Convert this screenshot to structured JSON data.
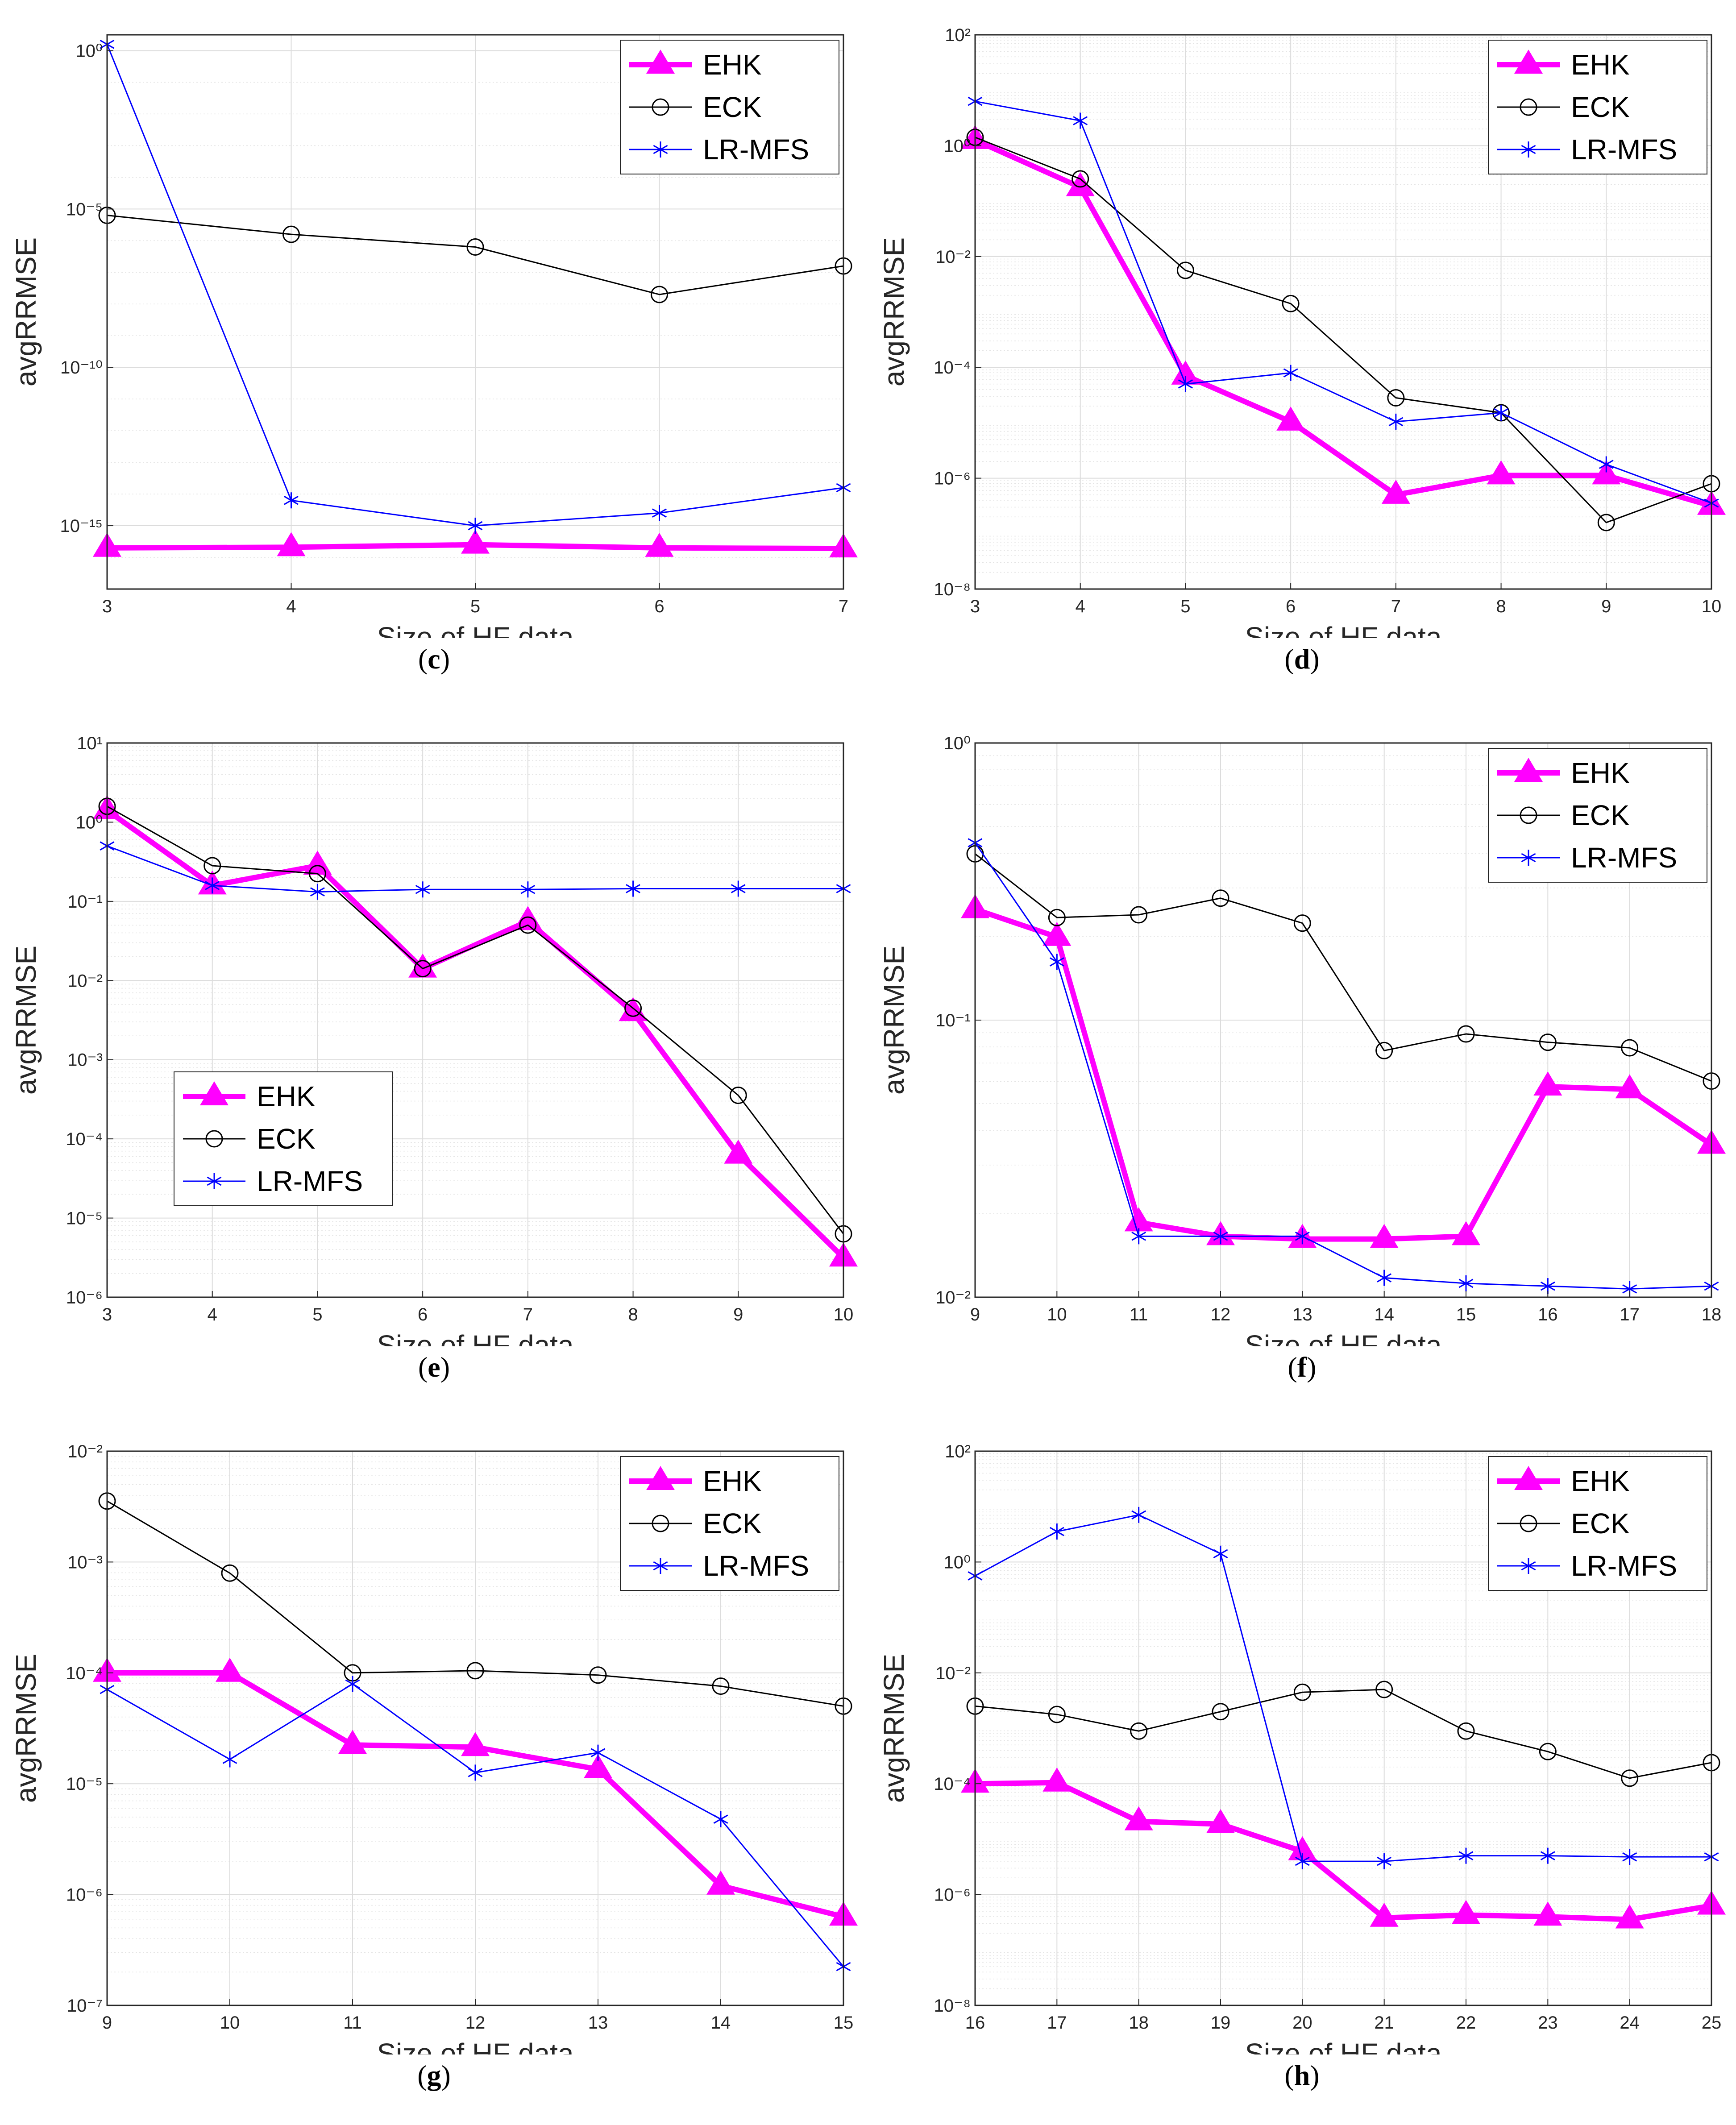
{
  "chart_data": [
    {
      "id": "c",
      "caption": "c",
      "type": "line",
      "yscale": "log",
      "xlabel": "Size of HF data",
      "ylabel": "avgRRMSE",
      "xlim": [
        3,
        7
      ],
      "xticks": [
        3,
        4,
        5,
        6,
        7
      ],
      "ylim_exp": [
        -17,
        0.5
      ],
      "yticks_exp": [
        0,
        -5,
        -10,
        -15
      ],
      "legend": "top-right",
      "series": [
        {
          "name": "EHK",
          "color": "#ff00ff",
          "marker": "triangle",
          "x": [
            3,
            4,
            5,
            6,
            7
          ],
          "log10_y": [
            -15.7,
            -15.68,
            -15.6,
            -15.7,
            -15.72
          ]
        },
        {
          "name": "ECK",
          "color": "#000000",
          "marker": "circle",
          "x": [
            3,
            4,
            5,
            6,
            7
          ],
          "log10_y": [
            -5.2,
            -5.8,
            -6.2,
            -7.7,
            -6.8
          ]
        },
        {
          "name": "LR-MFS",
          "color": "#0000ff",
          "marker": "star",
          "x": [
            3,
            4,
            5,
            6,
            7
          ],
          "log10_y": [
            0.2,
            -14.2,
            -15.0,
            -14.6,
            -13.8
          ]
        }
      ]
    },
    {
      "id": "d",
      "caption": "d",
      "type": "line",
      "yscale": "log",
      "xlabel": "Size of HF data",
      "ylabel": "avgRRMSE",
      "xlim": [
        3,
        10
      ],
      "xticks": [
        3,
        4,
        5,
        6,
        7,
        8,
        9,
        10
      ],
      "ylim_exp": [
        -8,
        2
      ],
      "yticks_exp": [
        2,
        0,
        -2,
        -4,
        -6,
        -8
      ],
      "legend": "top-right",
      "series": [
        {
          "name": "EHK",
          "color": "#ff00ff",
          "marker": "triangle",
          "x": [
            3,
            4,
            5,
            6,
            7,
            8,
            9,
            10
          ],
          "log10_y": [
            0.1,
            -0.75,
            -4.15,
            -4.98,
            -6.3,
            -5.95,
            -5.95,
            -6.5
          ]
        },
        {
          "name": "ECK",
          "color": "#000000",
          "marker": "circle",
          "x": [
            3,
            4,
            5,
            6,
            7,
            8,
            9,
            10
          ],
          "log10_y": [
            0.15,
            -0.6,
            -2.25,
            -2.85,
            -4.55,
            -4.82,
            -6.8,
            -6.1
          ]
        },
        {
          "name": "LR-MFS",
          "color": "#0000ff",
          "marker": "star",
          "x": [
            3,
            4,
            5,
            6,
            7,
            8,
            9,
            10
          ],
          "log10_y": [
            0.8,
            0.45,
            -4.3,
            -4.1,
            -4.98,
            -4.82,
            -5.75,
            -6.45
          ]
        }
      ]
    },
    {
      "id": "e",
      "caption": "e",
      "type": "line",
      "yscale": "log",
      "xlabel": "Size of HF data",
      "ylabel": "avgRRMSE",
      "xlim": [
        3,
        10
      ],
      "xticks": [
        3,
        4,
        5,
        6,
        7,
        8,
        9,
        10
      ],
      "ylim_exp": [
        -6,
        1
      ],
      "yticks_exp": [
        1,
        0,
        -1,
        -2,
        -3,
        -4,
        -5,
        -6
      ],
      "legend": "bottom-left",
      "series": [
        {
          "name": "EHK",
          "color": "#ff00ff",
          "marker": "triangle",
          "x": [
            3,
            4,
            5,
            6,
            7,
            8,
            9,
            10
          ],
          "log10_y": [
            0.15,
            -0.8,
            -0.55,
            -1.85,
            -1.25,
            -2.4,
            -4.2,
            -5.5
          ]
        },
        {
          "name": "ECK",
          "color": "#000000",
          "marker": "circle",
          "x": [
            3,
            4,
            5,
            6,
            7,
            8,
            9,
            10
          ],
          "log10_y": [
            0.2,
            -0.55,
            -0.65,
            -1.85,
            -1.3,
            -2.35,
            -3.45,
            -5.2
          ]
        },
        {
          "name": "LR-MFS",
          "color": "#0000ff",
          "marker": "star",
          "x": [
            3,
            4,
            5,
            6,
            7,
            8,
            9,
            10
          ],
          "log10_y": [
            -0.3,
            -0.8,
            -0.88,
            -0.85,
            -0.85,
            -0.84,
            -0.84,
            -0.84
          ]
        }
      ]
    },
    {
      "id": "f",
      "caption": "f",
      "type": "line",
      "yscale": "log",
      "xlabel": "Size of HF data",
      "ylabel": "avgRRMSE",
      "xlim": [
        9,
        18
      ],
      "xticks": [
        9,
        10,
        11,
        12,
        13,
        14,
        15,
        16,
        17,
        18
      ],
      "ylim_exp": [
        -2,
        0
      ],
      "yticks_exp": [
        0,
        -1,
        -2
      ],
      "legend": "top-right",
      "series": [
        {
          "name": "EHK",
          "color": "#ff00ff",
          "marker": "triangle",
          "x": [
            9,
            10,
            11,
            12,
            13,
            14,
            15,
            16,
            17,
            18
          ],
          "log10_y": [
            -0.6,
            -0.7,
            -1.73,
            -1.78,
            -1.79,
            -1.79,
            -1.78,
            -1.24,
            -1.25,
            -1.45
          ]
        },
        {
          "name": "ECK",
          "color": "#000000",
          "marker": "circle",
          "x": [
            9,
            10,
            11,
            12,
            13,
            14,
            15,
            16,
            17,
            18
          ],
          "log10_y": [
            -0.4,
            -0.63,
            -0.62,
            -0.56,
            -0.65,
            -1.11,
            -1.05,
            -1.08,
            -1.1,
            -1.22
          ]
        },
        {
          "name": "LR-MFS",
          "color": "#0000ff",
          "marker": "star",
          "x": [
            9,
            10,
            11,
            12,
            13,
            14,
            15,
            16,
            17,
            18
          ],
          "log10_y": [
            -0.36,
            -0.79,
            -1.78,
            -1.78,
            -1.78,
            -1.93,
            -1.95,
            -1.96,
            -1.97,
            -1.96
          ]
        }
      ]
    },
    {
      "id": "g",
      "caption": "g",
      "type": "line",
      "yscale": "log",
      "xlabel": "Size of HF data",
      "ylabel": "avgRRMSE",
      "xlim": [
        9,
        15
      ],
      "xticks": [
        9,
        10,
        11,
        12,
        13,
        14,
        15
      ],
      "ylim_exp": [
        -7,
        -2
      ],
      "yticks_exp": [
        -2,
        -3,
        -4,
        -5,
        -6,
        -7
      ],
      "legend": "top-right",
      "series": [
        {
          "name": "EHK",
          "color": "#ff00ff",
          "marker": "triangle",
          "x": [
            9,
            10,
            11,
            12,
            13,
            14,
            15
          ],
          "log10_y": [
            -4.0,
            -4.0,
            -4.65,
            -4.67,
            -4.87,
            -5.92,
            -6.2
          ]
        },
        {
          "name": "ECK",
          "color": "#000000",
          "marker": "circle",
          "x": [
            9,
            10,
            11,
            12,
            13,
            14,
            15
          ],
          "log10_y": [
            -2.45,
            -3.1,
            -4.0,
            -3.98,
            -4.02,
            -4.12,
            -4.3
          ]
        },
        {
          "name": "LR-MFS",
          "color": "#0000ff",
          "marker": "star",
          "x": [
            9,
            10,
            11,
            12,
            13,
            14,
            15
          ],
          "log10_y": [
            -4.15,
            -4.78,
            -4.1,
            -4.9,
            -4.72,
            -5.32,
            -6.65
          ]
        }
      ]
    },
    {
      "id": "h",
      "caption": "h",
      "type": "line",
      "yscale": "log",
      "xlabel": "Size of HF data",
      "ylabel": "avgRRMSE",
      "xlim": [
        16,
        25
      ],
      "xticks": [
        16,
        17,
        18,
        19,
        20,
        21,
        22,
        23,
        24,
        25
      ],
      "ylim_exp": [
        -8,
        2
      ],
      "yticks_exp": [
        2,
        0,
        -2,
        -4,
        -6,
        -8
      ],
      "legend": "top-right",
      "series": [
        {
          "name": "EHK",
          "color": "#ff00ff",
          "marker": "triangle",
          "x": [
            16,
            17,
            18,
            19,
            20,
            21,
            22,
            23,
            24,
            25
          ],
          "log10_y": [
            -4.0,
            -3.98,
            -4.68,
            -4.73,
            -5.22,
            -6.42,
            -6.37,
            -6.4,
            -6.45,
            -6.2
          ]
        },
        {
          "name": "ECK",
          "color": "#000000",
          "marker": "circle",
          "x": [
            16,
            17,
            18,
            19,
            20,
            21,
            22,
            23,
            24,
            25
          ],
          "log10_y": [
            -2.6,
            -2.75,
            -3.05,
            -2.7,
            -2.35,
            -2.3,
            -3.05,
            -3.42,
            -3.9,
            -3.62
          ]
        },
        {
          "name": "LR-MFS",
          "color": "#0000ff",
          "marker": "star",
          "x": [
            16,
            17,
            18,
            19,
            20,
            21,
            22,
            23,
            24,
            25
          ],
          "log10_y": [
            -0.25,
            0.55,
            0.85,
            0.15,
            -5.4,
            -5.4,
            -5.3,
            -5.3,
            -5.32,
            -5.32
          ]
        }
      ]
    }
  ]
}
